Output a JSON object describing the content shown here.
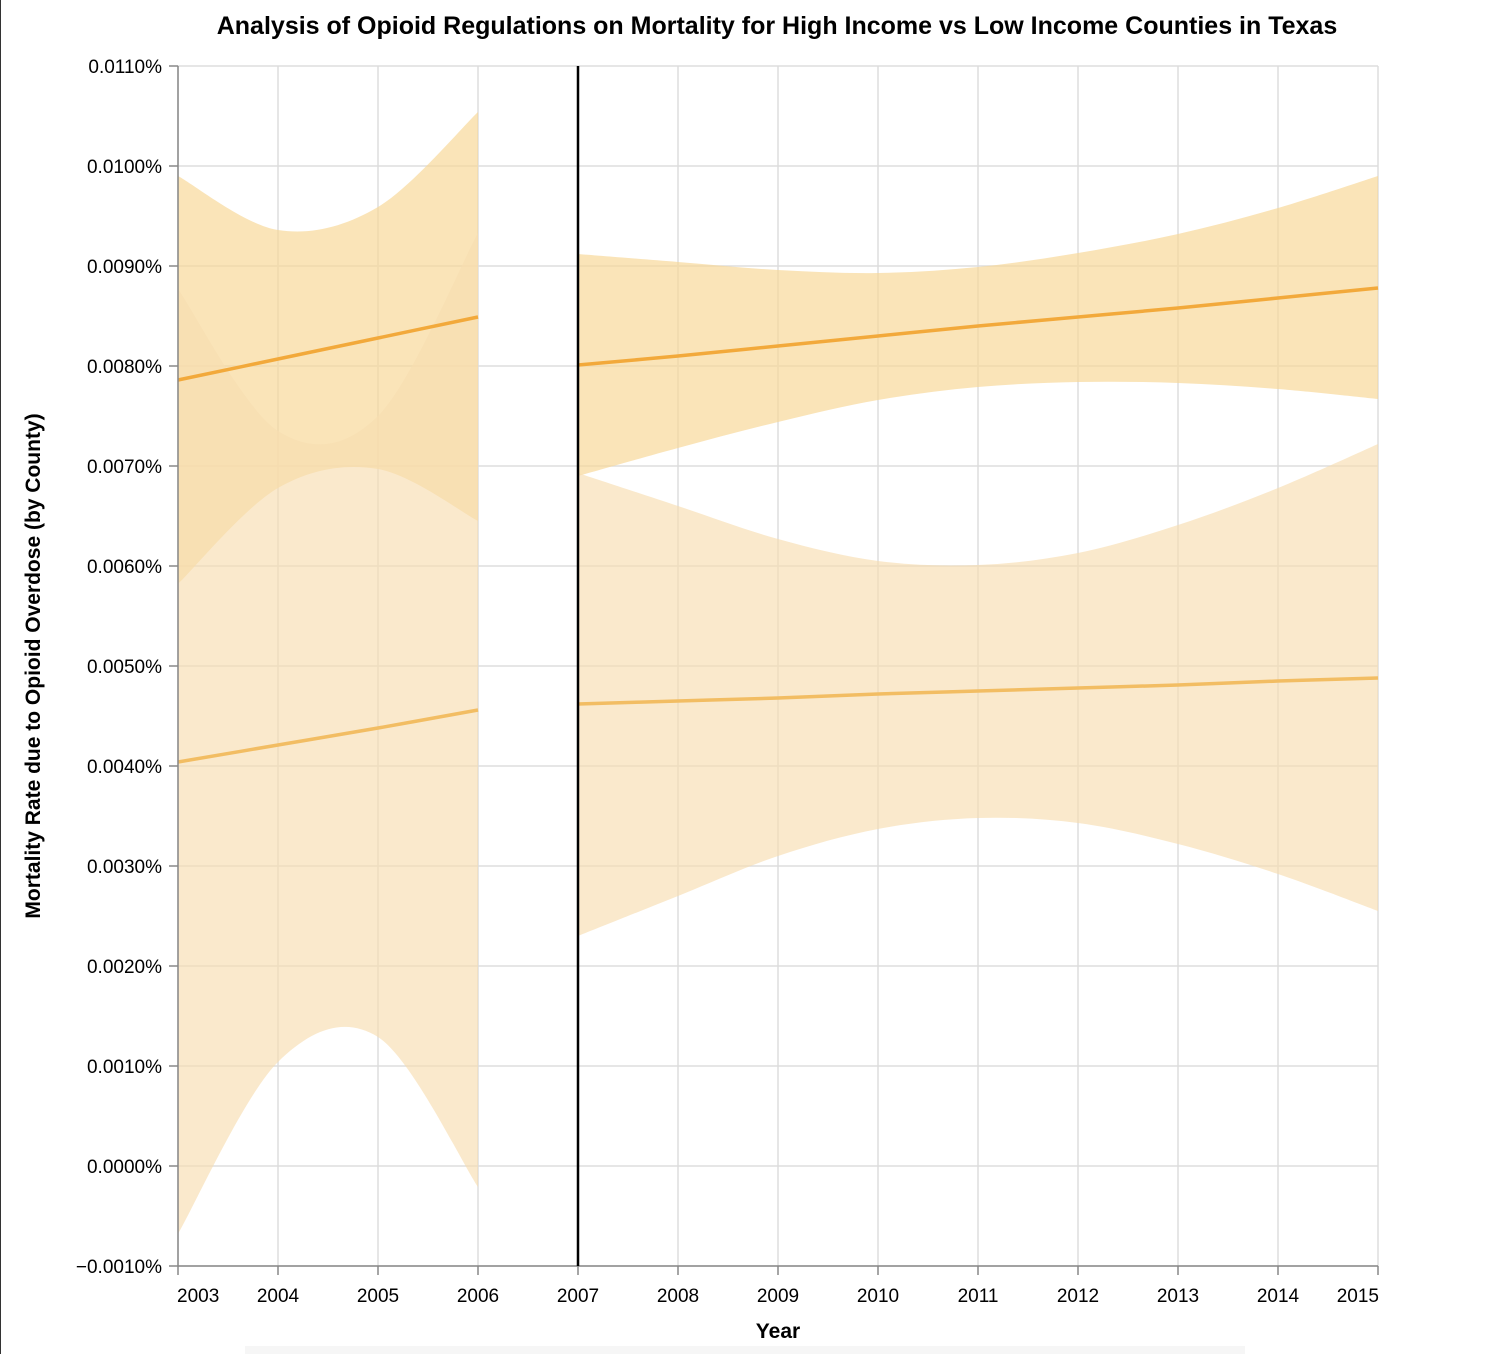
{
  "chart_data": {
    "type": "area",
    "title": "Analysis of Opioid Regulations on Mortality for High Income vs Low Income Counties in Texas",
    "xlabel": "Year",
    "ylabel": "Mortality Rate due to Opioid Overdose (by County)",
    "xlim": [
      2003,
      2015
    ],
    "ylim": [
      -0.001,
      0.011
    ],
    "x_ticks": [
      "2003",
      "2004",
      "2005",
      "2006",
      "2007",
      "2008",
      "2009",
      "2010",
      "2011",
      "2012",
      "2013",
      "2014",
      "2015"
    ],
    "y_ticks": [
      "−0.0010%",
      "0.0000%",
      "0.0010%",
      "0.0020%",
      "0.0030%",
      "0.0040%",
      "0.0050%",
      "0.0060%",
      "0.0070%",
      "0.0080%",
      "0.0090%",
      "0.0100%",
      "0.0110%"
    ],
    "grid": true,
    "annotations": [
      {
        "type": "vertical-rule",
        "x": 2007
      }
    ],
    "colors": {
      "high_line": "#f2a93b",
      "low_line": "#f2bd63",
      "high_band": "#f8d89a",
      "low_band": "#f7ddb0",
      "grid": "#dddddd",
      "axis": "#888888",
      "rule": "#000000"
    },
    "series": [
      {
        "segment": "pre",
        "x": [
          2003,
          2004,
          2005,
          2006
        ],
        "line": [
          0.00786,
          0.00807,
          0.00828,
          0.00849
        ],
        "lower": [
          0.00582,
          0.00678,
          0.00697,
          0.00645
        ],
        "upper": [
          0.0099,
          0.00936,
          0.00959,
          0.01054
        ]
      },
      {
        "segment": "pre",
        "x": [
          2003,
          2004,
          2005,
          2006
        ],
        "line": [
          0.00404,
          0.00421,
          0.00438,
          0.00456
        ],
        "lower": [
          -0.00068,
          0.00104,
          0.00129,
          -0.00021
        ],
        "upper": [
          0.00877,
          0.00735,
          0.0075,
          0.00933
        ]
      },
      {
        "segment": "post",
        "x": [
          2007,
          2008,
          2009,
          2010,
          2011,
          2012,
          2013,
          2014,
          2015
        ],
        "line": [
          0.00801,
          0.0081,
          0.0082,
          0.0083,
          0.0084,
          0.00849,
          0.00858,
          0.00868,
          0.00878
        ],
        "lower": [
          0.0069,
          0.00718,
          0.00744,
          0.00766,
          0.00779,
          0.00784,
          0.00783,
          0.00777,
          0.00767
        ],
        "upper": [
          0.00912,
          0.00904,
          0.00896,
          0.00893,
          0.00899,
          0.00913,
          0.00932,
          0.00958,
          0.0099
        ]
      },
      {
        "segment": "post",
        "x": [
          2007,
          2008,
          2009,
          2010,
          2011,
          2012,
          2013,
          2014,
          2015
        ],
        "line": [
          0.00462,
          0.00465,
          0.00468,
          0.00472,
          0.00475,
          0.00478,
          0.00481,
          0.00485,
          0.00488
        ],
        "lower": [
          0.0023,
          0.0027,
          0.0031,
          0.00337,
          0.00348,
          0.00343,
          0.00322,
          0.00292,
          0.00255
        ],
        "upper": [
          0.00693,
          0.0066,
          0.00627,
          0.00605,
          0.00601,
          0.00613,
          0.00641,
          0.00678,
          0.00722
        ]
      }
    ]
  }
}
